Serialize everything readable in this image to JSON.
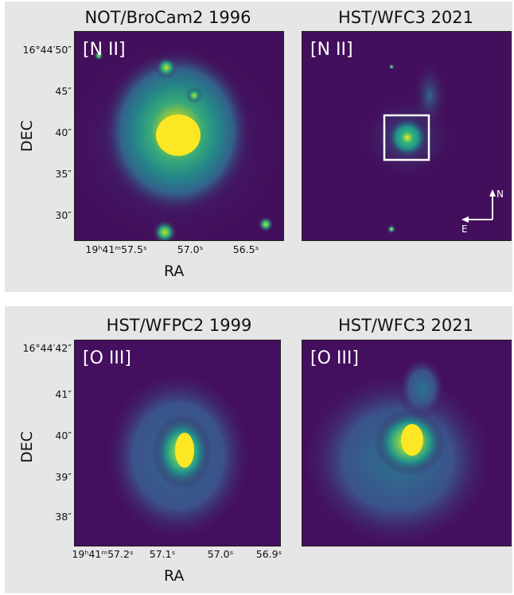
{
  "top": {
    "left_panel": {
      "title": "NOT/BroCam2 1996",
      "filter": "[N II]"
    },
    "right_panel": {
      "title": "HST/WFC3 2021",
      "filter": "[N II]",
      "compass": {
        "north": "N",
        "east": "E"
      }
    },
    "y_axis": {
      "label": "DEC",
      "ticks": [
        "16°44′50″",
        "45″",
        "40″",
        "35″",
        "30″"
      ]
    },
    "x_axis": {
      "label": "RA",
      "ticks": [
        "19ʰ41ᵐ57.5ˢ",
        "57.0ˢ",
        "56.5ˢ"
      ]
    }
  },
  "bottom": {
    "left_panel": {
      "title": "HST/WFPC2 1999",
      "filter": "[O III]"
    },
    "right_panel": {
      "title": "HST/WFC3 2021",
      "filter": "[O III]"
    },
    "y_axis": {
      "label": "DEC",
      "ticks": [
        "16°44′42″",
        "41″",
        "40″",
        "39″",
        "38″"
      ]
    },
    "x_axis": {
      "label": "RA",
      "ticks": [
        "19ʰ41ᵐ57.2ˢ",
        "57.1ˢ",
        "57.0ˢ",
        "56.9ˢ"
      ]
    }
  },
  "colors": {
    "background": "#430f5c",
    "colormap": "viridis",
    "box": "#ffffff"
  }
}
